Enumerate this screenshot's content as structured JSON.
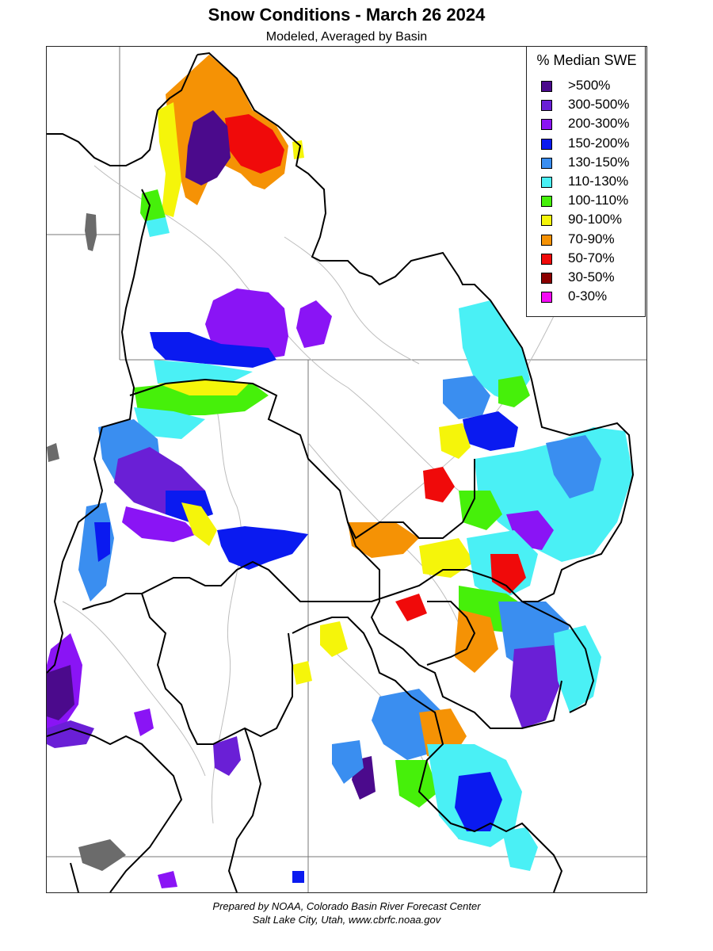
{
  "title": "Snow Conditions - March 26 2024",
  "subtitle": "Modeled, Averaged by Basin",
  "legend": {
    "title": "% Median SWE",
    "items": [
      {
        "label": ">500%",
        "color": "#4b0a8c"
      },
      {
        "label": "300-500%",
        "color": "#6a1fd6"
      },
      {
        "label": "200-300%",
        "color": "#8a14f5"
      },
      {
        "label": "150-200%",
        "color": "#0a1af0"
      },
      {
        "label": "130-150%",
        "color": "#3a8ef0"
      },
      {
        "label": "110-130%",
        "color": "#4af0f5"
      },
      {
        "label": "100-110%",
        "color": "#46f00a"
      },
      {
        "label": "90-100%",
        "color": "#f5f50a"
      },
      {
        "label": "70-90%",
        "color": "#f59205"
      },
      {
        "label": "50-70%",
        "color": "#f00a0a"
      },
      {
        "label": "30-50%",
        "color": "#8c0000"
      },
      {
        "label": "0-30%",
        "color": "#f50af5"
      }
    ]
  },
  "footer": {
    "line1": "Prepared by NOAA, Colorado Basin River Forecast Center",
    "line2": "Salt Lake City, Utah, www.cbrfc.noaa.gov"
  }
}
